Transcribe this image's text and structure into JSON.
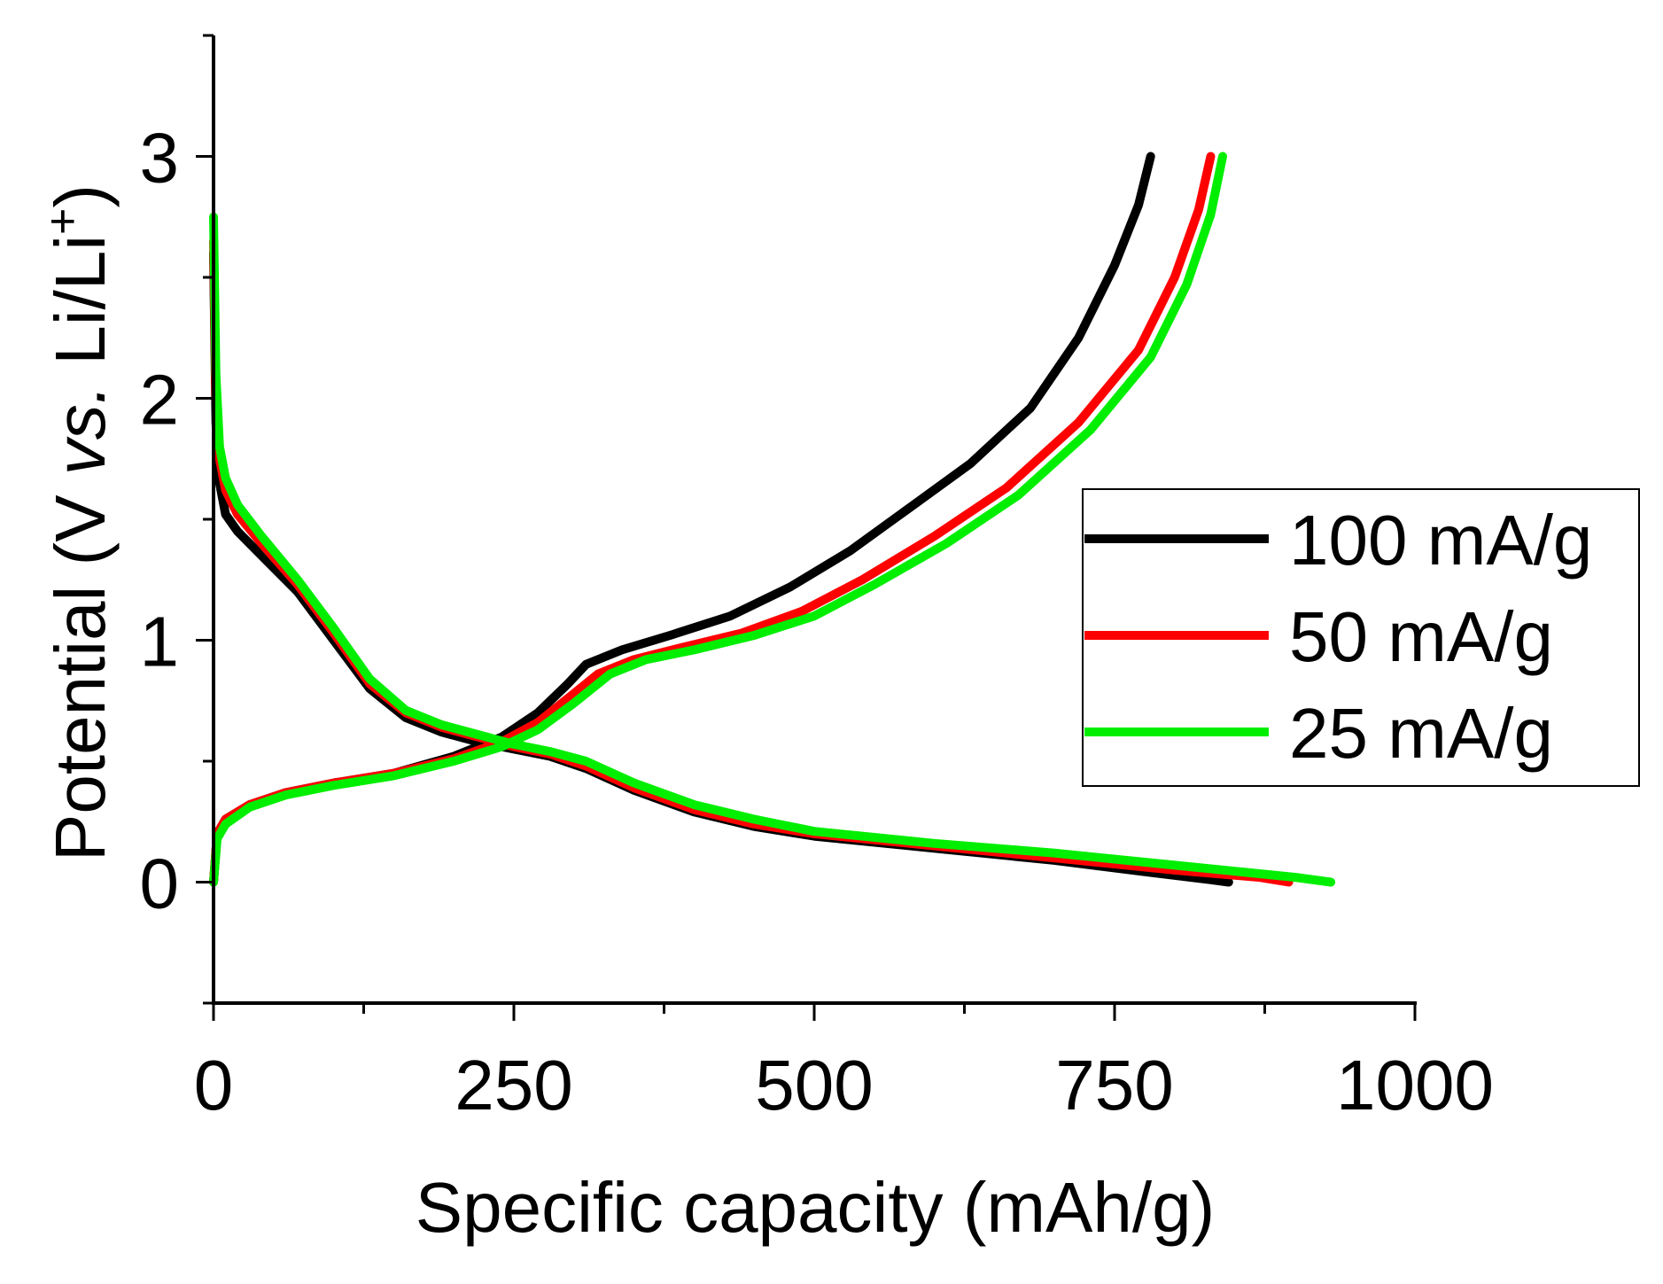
{
  "chart_data": {
    "type": "line",
    "title": "",
    "xlabel": "Specific capacity (mAh/g)",
    "ylabel": {
      "pre": "Potential (V ",
      "italic": "vs.",
      "mid": " Li/Li",
      "sup": "+",
      "post": ")"
    },
    "xlim": [
      0,
      1000
    ],
    "ylim": [
      -0.5,
      3.5
    ],
    "xticks": [
      0,
      250,
      500,
      750,
      1000
    ],
    "xtick_labels": [
      "0",
      "250",
      "500",
      "750",
      "1000"
    ],
    "yticks": [
      0,
      1,
      2,
      3
    ],
    "ytick_labels": [
      "0",
      "1",
      "2",
      "3"
    ],
    "x_minor_step": 125,
    "y_minor_step": 0.5,
    "grid": false,
    "legend_position": "right",
    "series": [
      {
        "name": "100 mA/g",
        "color": "#000000",
        "discharge": {
          "x": [
            0,
            2,
            5,
            10,
            20,
            40,
            70,
            100,
            130,
            160,
            190,
            220,
            250,
            280,
            310,
            350,
            400,
            450,
            500,
            600,
            700,
            780,
            830,
            845
          ],
          "y": [
            2.6,
            1.9,
            1.65,
            1.52,
            1.45,
            1.35,
            1.2,
            1.0,
            0.8,
            0.68,
            0.62,
            0.58,
            0.55,
            0.52,
            0.47,
            0.38,
            0.29,
            0.23,
            0.19,
            0.14,
            0.09,
            0.04,
            0.01,
            0.0
          ]
        },
        "charge": {
          "x": [
            0,
            3,
            10,
            30,
            60,
            100,
            150,
            200,
            240,
            270,
            295,
            310,
            340,
            380,
            430,
            480,
            530,
            580,
            630,
            680,
            720,
            750,
            770,
            780
          ],
          "y": [
            0.0,
            0.2,
            0.26,
            0.32,
            0.37,
            0.41,
            0.45,
            0.52,
            0.6,
            0.7,
            0.82,
            0.9,
            0.96,
            1.02,
            1.1,
            1.22,
            1.37,
            1.55,
            1.73,
            1.96,
            2.25,
            2.55,
            2.8,
            3.0
          ]
        }
      },
      {
        "name": "50 mA/g",
        "color": "#ff0000",
        "discharge": {
          "x": [
            0,
            2,
            5,
            10,
            20,
            40,
            70,
            100,
            130,
            160,
            190,
            220,
            250,
            280,
            310,
            350,
            400,
            450,
            500,
            600,
            700,
            800,
            870,
            895
          ],
          "y": [
            2.65,
            2.0,
            1.75,
            1.62,
            1.52,
            1.4,
            1.23,
            1.03,
            0.82,
            0.7,
            0.64,
            0.6,
            0.56,
            0.53,
            0.48,
            0.39,
            0.3,
            0.24,
            0.2,
            0.15,
            0.1,
            0.05,
            0.02,
            0.0
          ]
        },
        "charge": {
          "x": [
            0,
            3,
            10,
            30,
            60,
            100,
            150,
            200,
            240,
            270,
            300,
            320,
            350,
            390,
            440,
            490,
            540,
            600,
            660,
            720,
            770,
            800,
            820,
            830
          ],
          "y": [
            0.0,
            0.2,
            0.26,
            0.32,
            0.37,
            0.41,
            0.45,
            0.51,
            0.58,
            0.66,
            0.78,
            0.86,
            0.92,
            0.97,
            1.03,
            1.12,
            1.25,
            1.43,
            1.63,
            1.9,
            2.2,
            2.5,
            2.78,
            3.0
          ]
        }
      },
      {
        "name": "25 mA/g",
        "color": "#00ee00",
        "discharge": {
          "x": [
            0,
            2,
            5,
            10,
            20,
            40,
            70,
            100,
            130,
            160,
            190,
            220,
            250,
            280,
            310,
            350,
            400,
            450,
            500,
            600,
            700,
            800,
            900,
            930
          ],
          "y": [
            2.75,
            2.1,
            1.8,
            1.67,
            1.56,
            1.43,
            1.25,
            1.05,
            0.84,
            0.71,
            0.65,
            0.61,
            0.57,
            0.54,
            0.5,
            0.41,
            0.32,
            0.26,
            0.21,
            0.16,
            0.12,
            0.07,
            0.02,
            0.0
          ]
        },
        "charge": {
          "x": [
            0,
            3,
            10,
            30,
            60,
            100,
            150,
            200,
            240,
            270,
            300,
            330,
            360,
            400,
            450,
            500,
            550,
            610,
            670,
            730,
            780,
            810,
            830,
            840
          ],
          "y": [
            0.0,
            0.18,
            0.24,
            0.31,
            0.36,
            0.4,
            0.44,
            0.5,
            0.56,
            0.63,
            0.74,
            0.86,
            0.92,
            0.96,
            1.02,
            1.1,
            1.23,
            1.4,
            1.6,
            1.87,
            2.17,
            2.47,
            2.76,
            3.0
          ]
        }
      }
    ]
  }
}
